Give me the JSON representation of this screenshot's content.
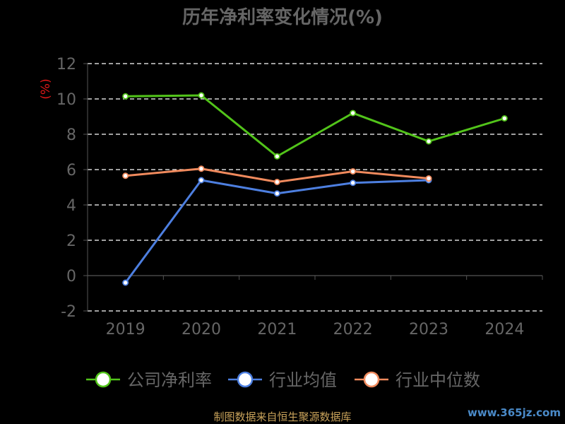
{
  "chart_data": {
    "type": "line",
    "title": "历年净利率变化情况(%)",
    "ylabel": "(%)",
    "categories": [
      "2019",
      "2020",
      "2021",
      "2022",
      "2023",
      "2024"
    ],
    "ylim": [
      -2,
      12
    ],
    "yticks": [
      -2,
      0,
      2,
      4,
      6,
      8,
      10,
      12
    ],
    "grid": true,
    "legend_position": "bottom",
    "series": [
      {
        "name": "公司净利率",
        "color": "#52c41a",
        "values": [
          10.15,
          10.2,
          6.75,
          9.2,
          7.6,
          8.9
        ]
      },
      {
        "name": "行业均值",
        "color": "#4d7fe0",
        "values": [
          -0.4,
          5.4,
          4.65,
          5.25,
          5.4,
          null
        ]
      },
      {
        "name": "行业中位数",
        "color": "#f08a5d",
        "values": [
          5.65,
          6.05,
          5.3,
          5.9,
          5.5,
          null
        ]
      }
    ]
  },
  "footer": "制图数据来自恒生聚源数据库",
  "watermark": "www.365jz.com"
}
